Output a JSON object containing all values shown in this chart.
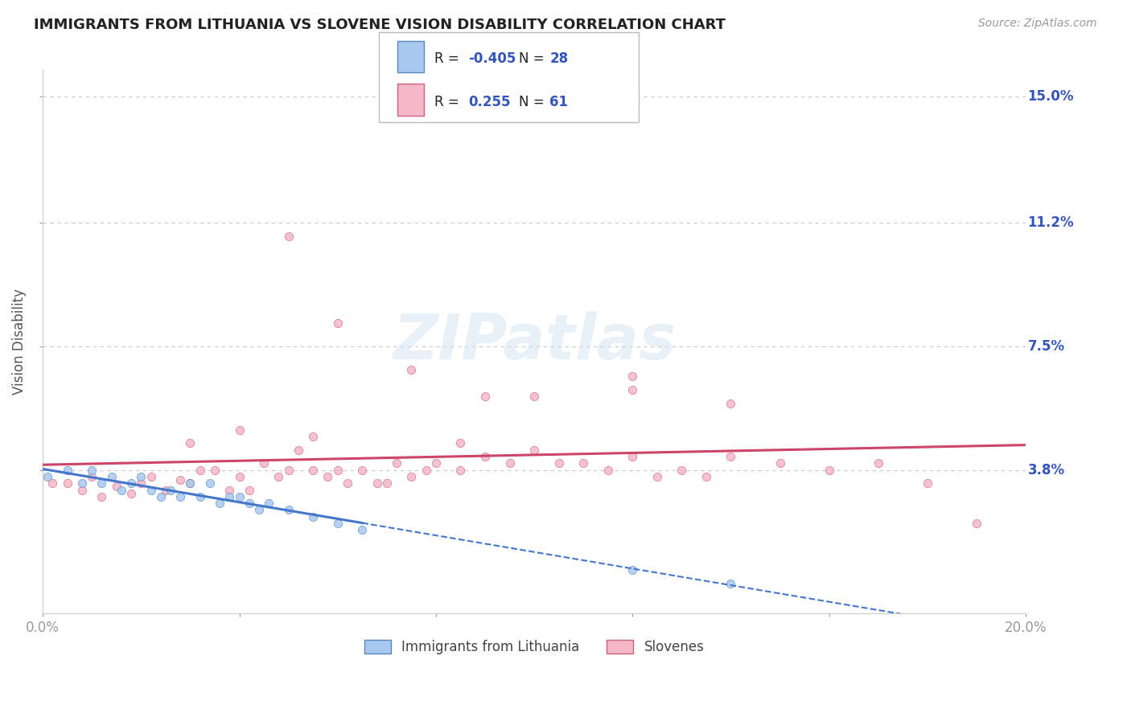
{
  "title": "IMMIGRANTS FROM LITHUANIA VS SLOVENE VISION DISABILITY CORRELATION CHART",
  "source": "Source: ZipAtlas.com",
  "ylabel": "Vision Disability",
  "xmin": 0.0,
  "xmax": 0.2,
  "ymin": -0.005,
  "ymax": 0.158,
  "yticks": [
    0.038,
    0.075,
    0.112,
    0.15
  ],
  "ytick_labels": [
    "3.8%",
    "7.5%",
    "11.2%",
    "15.0%"
  ],
  "xticks": [
    0.0,
    0.04,
    0.08,
    0.12,
    0.16,
    0.2
  ],
  "background_color": "#ffffff",
  "grid_color": "#c8c8d8",
  "blue_color": "#a8c8f0",
  "blue_edge": "#5588bb",
  "pink_color": "#f5b8c8",
  "pink_edge": "#d06080",
  "blue_trend_color": "#4477cc",
  "pink_trend_color": "#cc4466",
  "legend_val_color": "#3355bb",
  "legend_R1": "-0.405",
  "legend_N1": "28",
  "legend_R2": "0.255",
  "legend_N2": "61",
  "watermark": "ZIPatlas",
  "blue_scatter_x": [
    0.001,
    0.005,
    0.008,
    0.01,
    0.012,
    0.014,
    0.016,
    0.018,
    0.02,
    0.022,
    0.024,
    0.026,
    0.028,
    0.03,
    0.032,
    0.034,
    0.036,
    0.038,
    0.04,
    0.042,
    0.044,
    0.046,
    0.05,
    0.055,
    0.06,
    0.065,
    0.12,
    0.14
  ],
  "blue_scatter_y": [
    0.036,
    0.038,
    0.034,
    0.038,
    0.034,
    0.036,
    0.032,
    0.034,
    0.036,
    0.032,
    0.03,
    0.032,
    0.03,
    0.034,
    0.03,
    0.034,
    0.028,
    0.03,
    0.03,
    0.028,
    0.026,
    0.028,
    0.026,
    0.024,
    0.022,
    0.02,
    0.008,
    0.004
  ],
  "pink_scatter_x": [
    0.002,
    0.005,
    0.008,
    0.01,
    0.012,
    0.015,
    0.018,
    0.02,
    0.022,
    0.025,
    0.028,
    0.03,
    0.032,
    0.035,
    0.038,
    0.04,
    0.042,
    0.045,
    0.048,
    0.05,
    0.052,
    0.055,
    0.058,
    0.06,
    0.062,
    0.065,
    0.068,
    0.07,
    0.072,
    0.075,
    0.078,
    0.08,
    0.085,
    0.09,
    0.095,
    0.1,
    0.105,
    0.11,
    0.115,
    0.12,
    0.125,
    0.13,
    0.135,
    0.14,
    0.15,
    0.16,
    0.17,
    0.18,
    0.05,
    0.06,
    0.075,
    0.09,
    0.12,
    0.14,
    0.03,
    0.04,
    0.055,
    0.085,
    0.1,
    0.12,
    0.19
  ],
  "pink_scatter_y": [
    0.034,
    0.034,
    0.032,
    0.036,
    0.03,
    0.033,
    0.031,
    0.034,
    0.036,
    0.032,
    0.035,
    0.034,
    0.038,
    0.038,
    0.032,
    0.036,
    0.032,
    0.04,
    0.036,
    0.038,
    0.044,
    0.038,
    0.036,
    0.038,
    0.034,
    0.038,
    0.034,
    0.034,
    0.04,
    0.036,
    0.038,
    0.04,
    0.038,
    0.042,
    0.04,
    0.044,
    0.04,
    0.04,
    0.038,
    0.042,
    0.036,
    0.038,
    0.036,
    0.042,
    0.04,
    0.038,
    0.04,
    0.034,
    0.108,
    0.082,
    0.068,
    0.06,
    0.062,
    0.058,
    0.046,
    0.05,
    0.048,
    0.046,
    0.06,
    0.066,
    0.022
  ]
}
